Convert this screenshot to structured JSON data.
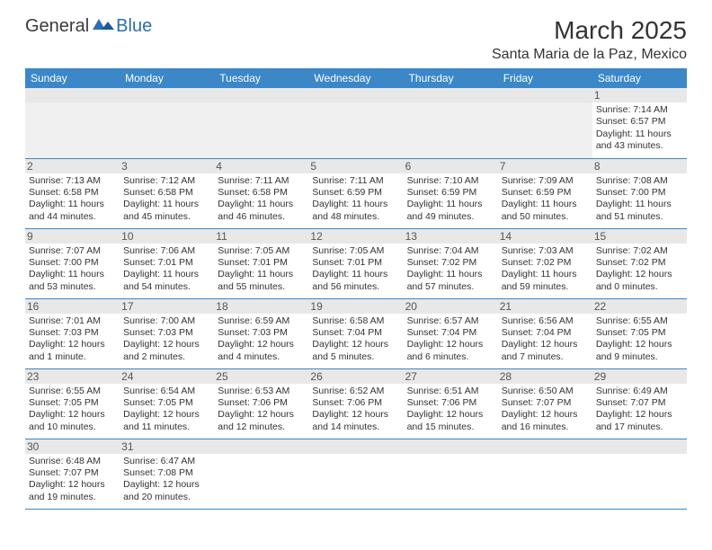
{
  "header": {
    "logo_a": "General",
    "logo_b": "Blue",
    "month_title": "March 2025",
    "location": "Santa Maria de la Paz, Mexico"
  },
  "colors": {
    "header_bg": "#3b87c8",
    "header_text": "#ffffff",
    "daynum_bg": "#e8e8e8",
    "border": "#3b87c8",
    "logo_blue": "#2a6fb0"
  },
  "typography": {
    "title_fontsize": 28,
    "location_fontsize": 16,
    "dayheader_fontsize": 12,
    "cell_fontsize": 10.5
  },
  "day_headers": [
    "Sunday",
    "Monday",
    "Tuesday",
    "Wednesday",
    "Thursday",
    "Friday",
    "Saturday"
  ],
  "weeks": [
    [
      null,
      null,
      null,
      null,
      null,
      null,
      {
        "n": "1",
        "sr": "Sunrise: 7:14 AM",
        "ss": "Sunset: 6:57 PM",
        "d1": "Daylight: 11 hours",
        "d2": "and 43 minutes."
      }
    ],
    [
      {
        "n": "2",
        "sr": "Sunrise: 7:13 AM",
        "ss": "Sunset: 6:58 PM",
        "d1": "Daylight: 11 hours",
        "d2": "and 44 minutes."
      },
      {
        "n": "3",
        "sr": "Sunrise: 7:12 AM",
        "ss": "Sunset: 6:58 PM",
        "d1": "Daylight: 11 hours",
        "d2": "and 45 minutes."
      },
      {
        "n": "4",
        "sr": "Sunrise: 7:11 AM",
        "ss": "Sunset: 6:58 PM",
        "d1": "Daylight: 11 hours",
        "d2": "and 46 minutes."
      },
      {
        "n": "5",
        "sr": "Sunrise: 7:11 AM",
        "ss": "Sunset: 6:59 PM",
        "d1": "Daylight: 11 hours",
        "d2": "and 48 minutes."
      },
      {
        "n": "6",
        "sr": "Sunrise: 7:10 AM",
        "ss": "Sunset: 6:59 PM",
        "d1": "Daylight: 11 hours",
        "d2": "and 49 minutes."
      },
      {
        "n": "7",
        "sr": "Sunrise: 7:09 AM",
        "ss": "Sunset: 6:59 PM",
        "d1": "Daylight: 11 hours",
        "d2": "and 50 minutes."
      },
      {
        "n": "8",
        "sr": "Sunrise: 7:08 AM",
        "ss": "Sunset: 7:00 PM",
        "d1": "Daylight: 11 hours",
        "d2": "and 51 minutes."
      }
    ],
    [
      {
        "n": "9",
        "sr": "Sunrise: 7:07 AM",
        "ss": "Sunset: 7:00 PM",
        "d1": "Daylight: 11 hours",
        "d2": "and 53 minutes."
      },
      {
        "n": "10",
        "sr": "Sunrise: 7:06 AM",
        "ss": "Sunset: 7:01 PM",
        "d1": "Daylight: 11 hours",
        "d2": "and 54 minutes."
      },
      {
        "n": "11",
        "sr": "Sunrise: 7:05 AM",
        "ss": "Sunset: 7:01 PM",
        "d1": "Daylight: 11 hours",
        "d2": "and 55 minutes."
      },
      {
        "n": "12",
        "sr": "Sunrise: 7:05 AM",
        "ss": "Sunset: 7:01 PM",
        "d1": "Daylight: 11 hours",
        "d2": "and 56 minutes."
      },
      {
        "n": "13",
        "sr": "Sunrise: 7:04 AM",
        "ss": "Sunset: 7:02 PM",
        "d1": "Daylight: 11 hours",
        "d2": "and 57 minutes."
      },
      {
        "n": "14",
        "sr": "Sunrise: 7:03 AM",
        "ss": "Sunset: 7:02 PM",
        "d1": "Daylight: 11 hours",
        "d2": "and 59 minutes."
      },
      {
        "n": "15",
        "sr": "Sunrise: 7:02 AM",
        "ss": "Sunset: 7:02 PM",
        "d1": "Daylight: 12 hours",
        "d2": "and 0 minutes."
      }
    ],
    [
      {
        "n": "16",
        "sr": "Sunrise: 7:01 AM",
        "ss": "Sunset: 7:03 PM",
        "d1": "Daylight: 12 hours",
        "d2": "and 1 minute."
      },
      {
        "n": "17",
        "sr": "Sunrise: 7:00 AM",
        "ss": "Sunset: 7:03 PM",
        "d1": "Daylight: 12 hours",
        "d2": "and 2 minutes."
      },
      {
        "n": "18",
        "sr": "Sunrise: 6:59 AM",
        "ss": "Sunset: 7:03 PM",
        "d1": "Daylight: 12 hours",
        "d2": "and 4 minutes."
      },
      {
        "n": "19",
        "sr": "Sunrise: 6:58 AM",
        "ss": "Sunset: 7:04 PM",
        "d1": "Daylight: 12 hours",
        "d2": "and 5 minutes."
      },
      {
        "n": "20",
        "sr": "Sunrise: 6:57 AM",
        "ss": "Sunset: 7:04 PM",
        "d1": "Daylight: 12 hours",
        "d2": "and 6 minutes."
      },
      {
        "n": "21",
        "sr": "Sunrise: 6:56 AM",
        "ss": "Sunset: 7:04 PM",
        "d1": "Daylight: 12 hours",
        "d2": "and 7 minutes."
      },
      {
        "n": "22",
        "sr": "Sunrise: 6:55 AM",
        "ss": "Sunset: 7:05 PM",
        "d1": "Daylight: 12 hours",
        "d2": "and 9 minutes."
      }
    ],
    [
      {
        "n": "23",
        "sr": "Sunrise: 6:55 AM",
        "ss": "Sunset: 7:05 PM",
        "d1": "Daylight: 12 hours",
        "d2": "and 10 minutes."
      },
      {
        "n": "24",
        "sr": "Sunrise: 6:54 AM",
        "ss": "Sunset: 7:05 PM",
        "d1": "Daylight: 12 hours",
        "d2": "and 11 minutes."
      },
      {
        "n": "25",
        "sr": "Sunrise: 6:53 AM",
        "ss": "Sunset: 7:06 PM",
        "d1": "Daylight: 12 hours",
        "d2": "and 12 minutes."
      },
      {
        "n": "26",
        "sr": "Sunrise: 6:52 AM",
        "ss": "Sunset: 7:06 PM",
        "d1": "Daylight: 12 hours",
        "d2": "and 14 minutes."
      },
      {
        "n": "27",
        "sr": "Sunrise: 6:51 AM",
        "ss": "Sunset: 7:06 PM",
        "d1": "Daylight: 12 hours",
        "d2": "and 15 minutes."
      },
      {
        "n": "28",
        "sr": "Sunrise: 6:50 AM",
        "ss": "Sunset: 7:07 PM",
        "d1": "Daylight: 12 hours",
        "d2": "and 16 minutes."
      },
      {
        "n": "29",
        "sr": "Sunrise: 6:49 AM",
        "ss": "Sunset: 7:07 PM",
        "d1": "Daylight: 12 hours",
        "d2": "and 17 minutes."
      }
    ],
    [
      {
        "n": "30",
        "sr": "Sunrise: 6:48 AM",
        "ss": "Sunset: 7:07 PM",
        "d1": "Daylight: 12 hours",
        "d2": "and 19 minutes."
      },
      {
        "n": "31",
        "sr": "Sunrise: 6:47 AM",
        "ss": "Sunset: 7:08 PM",
        "d1": "Daylight: 12 hours",
        "d2": "and 20 minutes."
      },
      null,
      null,
      null,
      null,
      null
    ]
  ]
}
